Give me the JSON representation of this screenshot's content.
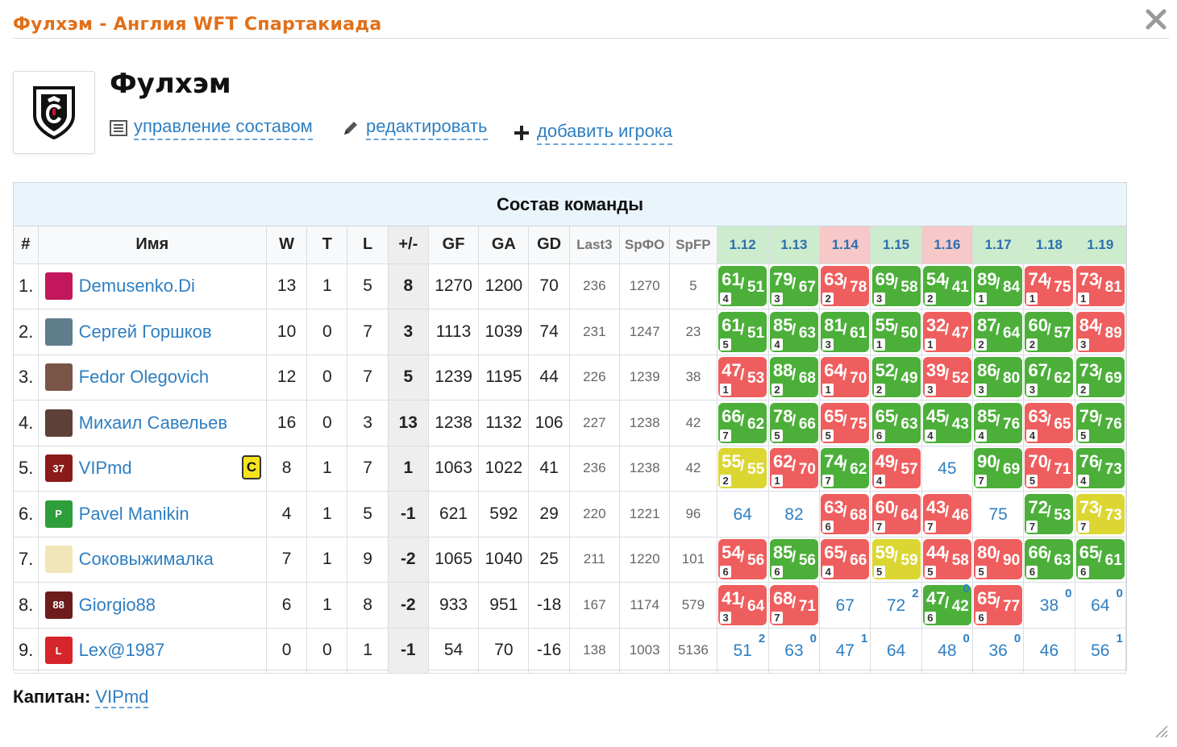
{
  "dialog": {
    "title": "Фулхэм - Англия WFT Спартакиада"
  },
  "team": {
    "name": "Фулхэм",
    "actions": [
      {
        "label": "управление составом",
        "icon": "list-icon"
      },
      {
        "label": "редактировать",
        "icon": "pencil-icon"
      },
      {
        "label": "добавить игрока",
        "icon": "plus-icon"
      }
    ]
  },
  "roster": {
    "caption": "Состав команды",
    "headers": {
      "idx": "#",
      "name": "Имя",
      "w": "W",
      "t": "T",
      "l": "L",
      "pm": "+/-",
      "gf": "GF",
      "ga": "GA",
      "gd": "GD",
      "last3": "Last3",
      "srfo": "SрФО",
      "spfp": "SpFP"
    },
    "tours": [
      {
        "label": "1.12",
        "color": "#cdeccd"
      },
      {
        "label": "1.13",
        "color": "#cdeccd"
      },
      {
        "label": "1.14",
        "color": "#f6c8c8"
      },
      {
        "label": "1.15",
        "color": "#cdeccd"
      },
      {
        "label": "1.16",
        "color": "#f6c8c8"
      },
      {
        "label": "1.17",
        "color": "#cdeccd"
      },
      {
        "label": "1.18",
        "color": "#cdeccd"
      },
      {
        "label": "1.19",
        "color": "#cdeccd"
      }
    ],
    "rows": [
      {
        "idx": "1.",
        "name": "Demusenko.Di",
        "avatar_color": "#c2185b",
        "avatar_text": "",
        "captain": false,
        "w": "13",
        "t": "1",
        "l": "5",
        "pm": "8",
        "gf": "1270",
        "ga": "1200",
        "gd": "70",
        "last3": "236",
        "srfo": "1270",
        "spfp": "5",
        "cells": [
          {
            "type": "chip",
            "color": "g",
            "a": "61",
            "b": "51",
            "n": "4"
          },
          {
            "type": "chip",
            "color": "g",
            "a": "79",
            "b": "67",
            "n": "3"
          },
          {
            "type": "chip",
            "color": "r",
            "a": "63",
            "b": "78",
            "n": "2"
          },
          {
            "type": "chip",
            "color": "g",
            "a": "69",
            "b": "58",
            "n": "3"
          },
          {
            "type": "chip",
            "color": "g",
            "a": "54",
            "b": "41",
            "n": "2"
          },
          {
            "type": "chip",
            "color": "g",
            "a": "89",
            "b": "84",
            "n": "1"
          },
          {
            "type": "chip",
            "color": "r",
            "a": "74",
            "b": "75",
            "n": "1"
          },
          {
            "type": "chip",
            "color": "r",
            "a": "73",
            "b": "81",
            "n": "1"
          }
        ]
      },
      {
        "idx": "2.",
        "name": "Сергей Горшков",
        "avatar_color": "#607d8b",
        "avatar_text": "",
        "captain": false,
        "w": "10",
        "t": "0",
        "l": "7",
        "pm": "3",
        "gf": "1113",
        "ga": "1039",
        "gd": "74",
        "last3": "231",
        "srfo": "1247",
        "spfp": "23",
        "cells": [
          {
            "type": "chip",
            "color": "g",
            "a": "61",
            "b": "51",
            "n": "5"
          },
          {
            "type": "chip",
            "color": "g",
            "a": "85",
            "b": "63",
            "n": "4"
          },
          {
            "type": "chip",
            "color": "g",
            "a": "81",
            "b": "61",
            "n": "3"
          },
          {
            "type": "chip",
            "color": "g",
            "a": "55",
            "b": "50",
            "n": "1"
          },
          {
            "type": "chip",
            "color": "r",
            "a": "32",
            "b": "47",
            "n": "1"
          },
          {
            "type": "chip",
            "color": "g",
            "a": "87",
            "b": "64",
            "n": "2"
          },
          {
            "type": "chip",
            "color": "g",
            "a": "60",
            "b": "57",
            "n": "2"
          },
          {
            "type": "chip",
            "color": "r",
            "a": "84",
            "b": "89",
            "n": "3"
          }
        ]
      },
      {
        "idx": "3.",
        "name": "Fedor Olegovich",
        "avatar_color": "#795548",
        "avatar_text": "",
        "captain": false,
        "w": "12",
        "t": "0",
        "l": "7",
        "pm": "5",
        "gf": "1239",
        "ga": "1195",
        "gd": "44",
        "last3": "226",
        "srfo": "1239",
        "spfp": "38",
        "cells": [
          {
            "type": "chip",
            "color": "r",
            "a": "47",
            "b": "53",
            "n": "1"
          },
          {
            "type": "chip",
            "color": "g",
            "a": "88",
            "b": "68",
            "n": "2"
          },
          {
            "type": "chip",
            "color": "r",
            "a": "64",
            "b": "70",
            "n": "1"
          },
          {
            "type": "chip",
            "color": "g",
            "a": "52",
            "b": "49",
            "n": "2"
          },
          {
            "type": "chip",
            "color": "r",
            "a": "39",
            "b": "52",
            "n": "3"
          },
          {
            "type": "chip",
            "color": "g",
            "a": "86",
            "b": "80",
            "n": "3"
          },
          {
            "type": "chip",
            "color": "g",
            "a": "67",
            "b": "62",
            "n": "3"
          },
          {
            "type": "chip",
            "color": "g",
            "a": "73",
            "b": "69",
            "n": "2"
          }
        ]
      },
      {
        "idx": "4.",
        "name": "Михаил Савельев",
        "avatar_color": "#5d4037",
        "avatar_text": "",
        "captain": false,
        "w": "16",
        "t": "0",
        "l": "3",
        "pm": "13",
        "gf": "1238",
        "ga": "1132",
        "gd": "106",
        "last3": "227",
        "srfo": "1238",
        "spfp": "42",
        "cells": [
          {
            "type": "chip",
            "color": "g",
            "a": "66",
            "b": "62",
            "n": "7"
          },
          {
            "type": "chip",
            "color": "g",
            "a": "78",
            "b": "66",
            "n": "5"
          },
          {
            "type": "chip",
            "color": "r",
            "a": "65",
            "b": "75",
            "n": "5"
          },
          {
            "type": "chip",
            "color": "g",
            "a": "65",
            "b": "63",
            "n": "6"
          },
          {
            "type": "chip",
            "color": "g",
            "a": "45",
            "b": "43",
            "n": "4"
          },
          {
            "type": "chip",
            "color": "g",
            "a": "85",
            "b": "76",
            "n": "4"
          },
          {
            "type": "chip",
            "color": "r",
            "a": "63",
            "b": "65",
            "n": "4"
          },
          {
            "type": "chip",
            "color": "g",
            "a": "79",
            "b": "76",
            "n": "5"
          }
        ]
      },
      {
        "idx": "5.",
        "name": "VIPmd",
        "avatar_color": "#8b1a1a",
        "avatar_text": "37",
        "captain": true,
        "captain_label": "C",
        "w": "8",
        "t": "1",
        "l": "7",
        "pm": "1",
        "gf": "1063",
        "ga": "1022",
        "gd": "41",
        "last3": "236",
        "srfo": "1238",
        "spfp": "42",
        "cells": [
          {
            "type": "chip",
            "color": "y",
            "a": "55",
            "b": "55",
            "n": "2"
          },
          {
            "type": "chip",
            "color": "r",
            "a": "62",
            "b": "70",
            "n": "1"
          },
          {
            "type": "chip",
            "color": "g",
            "a": "74",
            "b": "62",
            "n": "7"
          },
          {
            "type": "chip",
            "color": "r",
            "a": "49",
            "b": "57",
            "n": "4"
          },
          {
            "type": "plain",
            "v": "45"
          },
          {
            "type": "chip",
            "color": "g",
            "a": "90",
            "b": "69",
            "n": "7"
          },
          {
            "type": "chip",
            "color": "r",
            "a": "70",
            "b": "71",
            "n": "5"
          },
          {
            "type": "chip",
            "color": "g",
            "a": "76",
            "b": "73",
            "n": "4"
          }
        ]
      },
      {
        "idx": "6.",
        "name": "Pavel Manikin",
        "avatar_color": "#2e9e3a",
        "avatar_text": "P",
        "captain": false,
        "w": "4",
        "t": "1",
        "l": "5",
        "pm": "-1",
        "gf": "621",
        "ga": "592",
        "gd": "29",
        "last3": "220",
        "srfo": "1221",
        "spfp": "96",
        "cells": [
          {
            "type": "plain",
            "v": "64"
          },
          {
            "type": "plain",
            "v": "82"
          },
          {
            "type": "chip",
            "color": "r",
            "a": "63",
            "b": "68",
            "n": "6"
          },
          {
            "type": "chip",
            "color": "r",
            "a": "60",
            "b": "64",
            "n": "7"
          },
          {
            "type": "chip",
            "color": "r",
            "a": "43",
            "b": "46",
            "n": "7"
          },
          {
            "type": "plain",
            "v": "75"
          },
          {
            "type": "chip",
            "color": "g",
            "a": "72",
            "b": "53",
            "n": "7"
          },
          {
            "type": "chip",
            "color": "y",
            "a": "73",
            "b": "73",
            "n": "7"
          }
        ]
      },
      {
        "idx": "7.",
        "name": "Соковыжималка",
        "avatar_color": "#f2e6b8",
        "avatar_text": "",
        "captain": false,
        "w": "7",
        "t": "1",
        "l": "9",
        "pm": "-2",
        "gf": "1065",
        "ga": "1040",
        "gd": "25",
        "last3": "211",
        "srfo": "1220",
        "spfp": "101",
        "cells": [
          {
            "type": "chip",
            "color": "r",
            "a": "54",
            "b": "56",
            "n": "6"
          },
          {
            "type": "chip",
            "color": "g",
            "a": "85",
            "b": "56",
            "n": "6"
          },
          {
            "type": "chip",
            "color": "r",
            "a": "65",
            "b": "66",
            "n": "4"
          },
          {
            "type": "chip",
            "color": "y",
            "a": "59",
            "b": "59",
            "n": "5"
          },
          {
            "type": "chip",
            "color": "r",
            "a": "44",
            "b": "58",
            "n": "5"
          },
          {
            "type": "chip",
            "color": "r",
            "a": "80",
            "b": "90",
            "n": "5"
          },
          {
            "type": "chip",
            "color": "g",
            "a": "66",
            "b": "63",
            "n": "6"
          },
          {
            "type": "chip",
            "color": "g",
            "a": "65",
            "b": "61",
            "n": "6"
          }
        ]
      },
      {
        "idx": "8.",
        "name": "Giorgio88",
        "avatar_color": "#6d1b1b",
        "avatar_text": "88",
        "captain": false,
        "w": "6",
        "t": "1",
        "l": "8",
        "pm": "-2",
        "gf": "933",
        "ga": "951",
        "gd": "-18",
        "last3": "167",
        "srfo": "1174",
        "spfp": "579",
        "cells": [
          {
            "type": "chip",
            "color": "r",
            "a": "41",
            "b": "64",
            "n": "3"
          },
          {
            "type": "chip",
            "color": "r",
            "a": "68",
            "b": "71",
            "n": "7"
          },
          {
            "type": "plain",
            "v": "67"
          },
          {
            "type": "plain",
            "v": "72",
            "sup": "2"
          },
          {
            "type": "chip",
            "color": "g",
            "a": "47",
            "b": "42",
            "n": "6",
            "sup": "0"
          },
          {
            "type": "chip",
            "color": "r",
            "a": "65",
            "b": "77",
            "n": "6"
          },
          {
            "type": "plain",
            "v": "38",
            "sup": "0"
          },
          {
            "type": "plain",
            "v": "64",
            "sup": "0"
          }
        ]
      },
      {
        "idx": "9.",
        "name": "Lex@1987",
        "avatar_color": "#d6262b",
        "avatar_text": "L",
        "captain": false,
        "w": "0",
        "t": "0",
        "l": "1",
        "pm": "-1",
        "gf": "54",
        "ga": "70",
        "gd": "-16",
        "last3": "138",
        "srfo": "1003",
        "spfp": "5136",
        "cells": [
          {
            "type": "plain",
            "v": "51",
            "sup": "2"
          },
          {
            "type": "plain",
            "v": "63",
            "sup": "0"
          },
          {
            "type": "plain",
            "v": "47",
            "sup": "1"
          },
          {
            "type": "plain",
            "v": "64"
          },
          {
            "type": "plain",
            "v": "48",
            "sup": "0"
          },
          {
            "type": "plain",
            "v": "36",
            "sup": "0"
          },
          {
            "type": "plain",
            "v": "46"
          },
          {
            "type": "plain",
            "v": "56",
            "sup": "1"
          }
        ]
      }
    ]
  },
  "captain": {
    "label": "Капитан:",
    "name": "VIPmd"
  }
}
